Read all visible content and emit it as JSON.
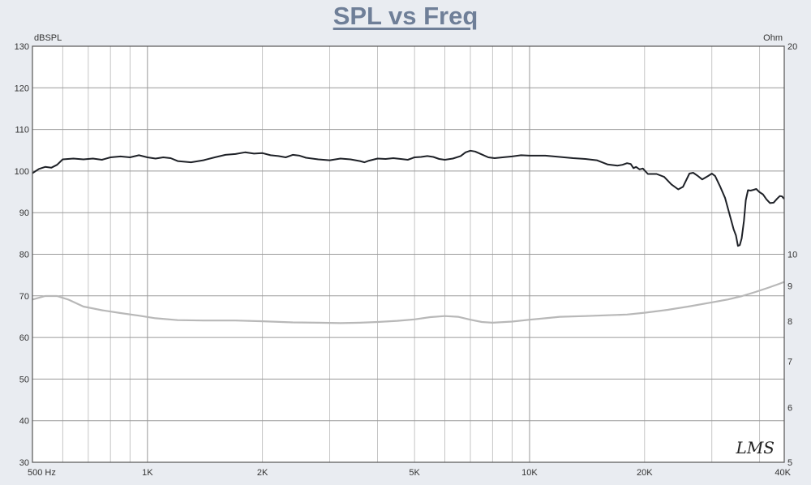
{
  "chart_data": {
    "type": "line",
    "title": "SPL vs Freq",
    "logo": "LMS",
    "x_axis": {
      "scale": "log",
      "range": [
        500,
        40000
      ],
      "tick_labels": [
        {
          "value": 500,
          "label": "500  Hz"
        },
        {
          "value": 1000,
          "label": "1K"
        },
        {
          "value": 2000,
          "label": "2K"
        },
        {
          "value": 5000,
          "label": "5K"
        },
        {
          "value": 10000,
          "label": "10K"
        },
        {
          "value": 20000,
          "label": "20K"
        },
        {
          "value": 40000,
          "label": "40K"
        }
      ]
    },
    "y_left": {
      "label": "dBSPL",
      "range": [
        30,
        130
      ],
      "ticks": [
        30,
        40,
        50,
        60,
        70,
        80,
        90,
        100,
        110,
        120,
        130
      ]
    },
    "y_right": {
      "label": "Ohm",
      "scale": "log",
      "range": [
        5,
        20
      ],
      "tick_labels": [
        {
          "value": 20,
          "label": "20"
        },
        {
          "value": 10,
          "label": "10"
        },
        {
          "value": 9,
          "label": "9"
        },
        {
          "value": 8,
          "label": "8"
        },
        {
          "value": 7,
          "label": "7"
        },
        {
          "value": 6,
          "label": "6"
        },
        {
          "value": 5,
          "label": "5"
        }
      ]
    },
    "grid": true,
    "colors": {
      "spl": "#1e2127",
      "impedance": "#b8b8b8",
      "grid": "#b7b7b7",
      "frame": "#555555",
      "plot_bg": "#ffffff"
    },
    "series": [
      {
        "axis": "left",
        "color": "#1e2127",
        "points": [
          [
            500,
            99.5
          ],
          [
            520,
            100.5
          ],
          [
            540,
            101
          ],
          [
            560,
            100.8
          ],
          [
            580,
            101.5
          ],
          [
            600,
            102.8
          ],
          [
            640,
            103
          ],
          [
            680,
            102.8
          ],
          [
            720,
            103
          ],
          [
            760,
            102.7
          ],
          [
            800,
            103.3
          ],
          [
            850,
            103.5
          ],
          [
            900,
            103.3
          ],
          [
            950,
            103.8
          ],
          [
            1000,
            103.3
          ],
          [
            1050,
            103.0
          ],
          [
            1100,
            103.3
          ],
          [
            1150,
            103.1
          ],
          [
            1200,
            102.4
          ],
          [
            1300,
            102.1
          ],
          [
            1400,
            102.6
          ],
          [
            1500,
            103.3
          ],
          [
            1600,
            103.9
          ],
          [
            1700,
            104.1
          ],
          [
            1800,
            104.5
          ],
          [
            1900,
            104.2
          ],
          [
            2000,
            104.3
          ],
          [
            2100,
            103.8
          ],
          [
            2200,
            103.6
          ],
          [
            2300,
            103.3
          ],
          [
            2400,
            103.9
          ],
          [
            2500,
            103.7
          ],
          [
            2600,
            103.2
          ],
          [
            2800,
            102.8
          ],
          [
            3000,
            102.6
          ],
          [
            3200,
            103.0
          ],
          [
            3400,
            102.8
          ],
          [
            3600,
            102.4
          ],
          [
            3700,
            102.1
          ],
          [
            3800,
            102.5
          ],
          [
            4000,
            103.0
          ],
          [
            4200,
            102.9
          ],
          [
            4400,
            103.1
          ],
          [
            4600,
            102.9
          ],
          [
            4800,
            102.7
          ],
          [
            5000,
            103.3
          ],
          [
            5200,
            103.4
          ],
          [
            5400,
            103.6
          ],
          [
            5600,
            103.4
          ],
          [
            5800,
            102.9
          ],
          [
            6000,
            102.7
          ],
          [
            6300,
            103.0
          ],
          [
            6600,
            103.6
          ],
          [
            6800,
            104.5
          ],
          [
            7000,
            104.9
          ],
          [
            7200,
            104.7
          ],
          [
            7500,
            104.0
          ],
          [
            7800,
            103.3
          ],
          [
            8100,
            103.1
          ],
          [
            8500,
            103.3
          ],
          [
            9000,
            103.5
          ],
          [
            9500,
            103.8
          ],
          [
            10000,
            103.7
          ],
          [
            11000,
            103.7
          ],
          [
            12000,
            103.4
          ],
          [
            13000,
            103.1
          ],
          [
            14000,
            102.9
          ],
          [
            15000,
            102.6
          ],
          [
            16000,
            101.6
          ],
          [
            17000,
            101.3
          ],
          [
            17500,
            101.5
          ],
          [
            18000,
            101.9
          ],
          [
            18400,
            101.7
          ],
          [
            18700,
            100.7
          ],
          [
            19000,
            101.0
          ],
          [
            19400,
            100.4
          ],
          [
            19800,
            100.6
          ],
          [
            20400,
            99.3
          ],
          [
            21500,
            99.3
          ],
          [
            22500,
            98.6
          ],
          [
            23500,
            96.8
          ],
          [
            24500,
            95.6
          ],
          [
            25200,
            96.2
          ],
          [
            26200,
            99.4
          ],
          [
            26800,
            99.6
          ],
          [
            27600,
            98.8
          ],
          [
            28300,
            98.0
          ],
          [
            29300,
            98.8
          ],
          [
            30000,
            99.4
          ],
          [
            30600,
            98.8
          ],
          [
            31500,
            96.4
          ],
          [
            32500,
            93.5
          ],
          [
            33400,
            89.5
          ],
          [
            34200,
            86.0
          ],
          [
            34700,
            84.5
          ],
          [
            35100,
            82.0
          ],
          [
            35500,
            82.2
          ],
          [
            35900,
            83.8
          ],
          [
            36400,
            88.0
          ],
          [
            36800,
            93.0
          ],
          [
            37300,
            95.4
          ],
          [
            37900,
            95.3
          ],
          [
            38600,
            95.5
          ],
          [
            39200,
            95.7
          ],
          [
            39900,
            95.0
          ],
          [
            40800,
            94.4
          ],
          [
            41700,
            93.2
          ],
          [
            42600,
            92.3
          ],
          [
            43500,
            92.4
          ],
          [
            44500,
            93.4
          ],
          [
            45200,
            94.0
          ],
          [
            45800,
            93.9
          ],
          [
            46400,
            93.3
          ]
        ]
      },
      {
        "axis": "right",
        "color": "#b8b8b8",
        "points": [
          [
            500,
            8.6
          ],
          [
            540,
            8.7
          ],
          [
            580,
            8.7
          ],
          [
            620,
            8.6
          ],
          [
            680,
            8.4
          ],
          [
            760,
            8.3
          ],
          [
            850,
            8.22
          ],
          [
            950,
            8.15
          ],
          [
            1050,
            8.08
          ],
          [
            1200,
            8.03
          ],
          [
            1400,
            8.02
          ],
          [
            1700,
            8.02
          ],
          [
            2000,
            8.0
          ],
          [
            2400,
            7.97
          ],
          [
            2800,
            7.96
          ],
          [
            3200,
            7.95
          ],
          [
            3600,
            7.96
          ],
          [
            4000,
            7.98
          ],
          [
            4500,
            8.01
          ],
          [
            5000,
            8.05
          ],
          [
            5500,
            8.11
          ],
          [
            6000,
            8.14
          ],
          [
            6500,
            8.12
          ],
          [
            7000,
            8.04
          ],
          [
            7500,
            7.98
          ],
          [
            8000,
            7.96
          ],
          [
            9000,
            7.99
          ],
          [
            10000,
            8.04
          ],
          [
            11000,
            8.08
          ],
          [
            12000,
            8.12
          ],
          [
            14000,
            8.14
          ],
          [
            16000,
            8.16
          ],
          [
            18000,
            8.18
          ],
          [
            20000,
            8.23
          ],
          [
            23000,
            8.31
          ],
          [
            26000,
            8.4
          ],
          [
            30000,
            8.52
          ],
          [
            33000,
            8.6
          ],
          [
            36000,
            8.7
          ],
          [
            39000,
            8.82
          ],
          [
            42000,
            8.94
          ],
          [
            45000,
            9.06
          ],
          [
            46400,
            9.12
          ]
        ]
      }
    ]
  }
}
